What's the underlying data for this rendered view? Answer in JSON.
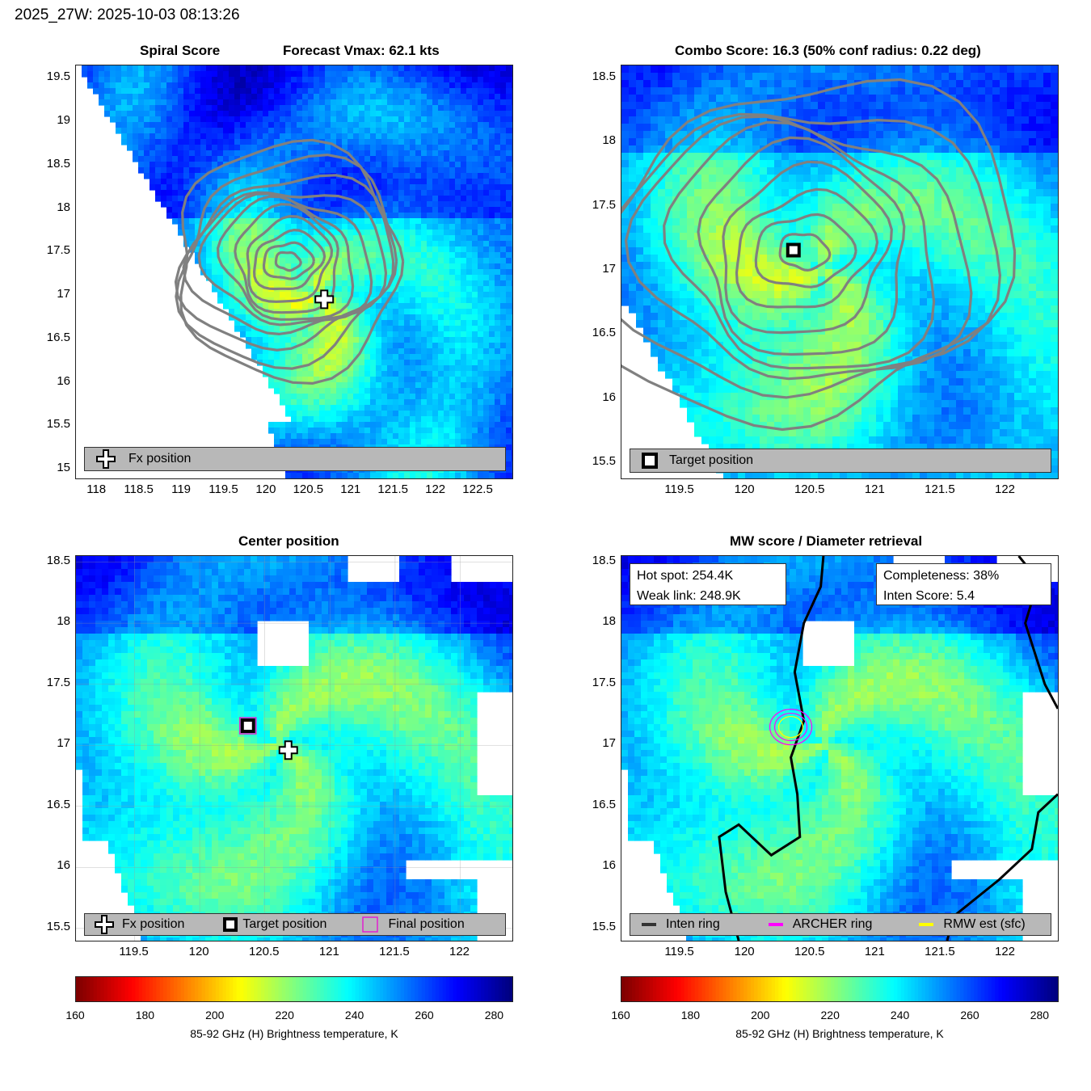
{
  "figure_title": "2025_27W: 2025-10-03 08:13:26",
  "panels": {
    "top_left": {
      "title_left": "Spiral Score",
      "title_right": "Forecast Vmax: 62.1 kts",
      "yticks": [
        "19.5",
        "19",
        "18.5",
        "18",
        "17.5",
        "17",
        "16.5",
        "16",
        "15.5",
        "15"
      ],
      "xticks": [
        "118",
        "118.5",
        "119",
        "119.5",
        "120",
        "120.5",
        "121",
        "121.5",
        "122",
        "122.5"
      ],
      "legend": [
        {
          "marker": "plus-icon",
          "label": "Fx position"
        }
      ]
    },
    "top_right": {
      "title": "Combo Score: 16.3  (50% conf radius: 0.22 deg)",
      "yticks": [
        "18.5",
        "18",
        "17.5",
        "17",
        "16.5",
        "16",
        "15.5"
      ],
      "xticks": [
        "119.5",
        "120",
        "120.5",
        "121",
        "121.5",
        "122"
      ],
      "legend": [
        {
          "marker": "square-icon",
          "label": "Target position"
        }
      ]
    },
    "bottom_left": {
      "title": "Center position",
      "yticks": [
        "18.5",
        "18",
        "17.5",
        "17",
        "16.5",
        "16",
        "15.5"
      ],
      "xticks": [
        "119.5",
        "120",
        "120.5",
        "121",
        "121.5",
        "122"
      ],
      "legend": [
        {
          "marker": "plus-icon",
          "label": "Fx position"
        },
        {
          "marker": "square-icon",
          "label": "Target position"
        },
        {
          "marker": "magenta-square-icon",
          "label": "Final position"
        }
      ]
    },
    "bottom_right": {
      "title": "MW score / Diameter retrieval",
      "yticks": [
        "18.5",
        "18",
        "17.5",
        "17",
        "16.5",
        "16",
        "15.5"
      ],
      "xticks": [
        "119.5",
        "120",
        "120.5",
        "121",
        "121.5",
        "122"
      ],
      "info_left": [
        "Hot spot: 254.4K",
        "Weak link: 248.9K"
      ],
      "info_right": [
        "Completeness: 38%",
        "Inten Score: 5.4"
      ],
      "legend": [
        {
          "marker": "dark-line-icon",
          "label": "Inten ring",
          "color": "#333333"
        },
        {
          "marker": "magenta-line-icon",
          "label": "ARCHER ring",
          "color": "#ff00ff"
        },
        {
          "marker": "yellow-line-icon",
          "label": "RMW est (sfc)",
          "color": "#ffff00"
        }
      ]
    }
  },
  "colorbar": {
    "label": "85-92 GHz (H) Brightness temperature, K",
    "ticks": [
      "160",
      "180",
      "200",
      "220",
      "240",
      "260",
      "280"
    ],
    "colormap": "jet_reversed",
    "range": [
      160,
      285
    ]
  },
  "chart_data": [
    {
      "type": "heatmap",
      "title": "Spiral Score  Forecast Vmax: 62.1 kts",
      "xlim": [
        117.75,
        122.9
      ],
      "ylim": [
        14.9,
        19.65
      ],
      "markers": [
        {
          "name": "Fx position",
          "x": 120.68,
          "y": 16.96
        }
      ],
      "contours": true
    },
    {
      "type": "heatmap",
      "title": "Combo Score: 16.3  (50% conf radius: 0.22 deg)",
      "xlim": [
        119.05,
        122.4
      ],
      "ylim": [
        15.4,
        18.6
      ],
      "markers": [
        {
          "name": "Target position",
          "x": 120.37,
          "y": 17.16
        }
      ],
      "contours": true
    },
    {
      "type": "heatmap",
      "title": "Center position",
      "xlim": [
        119.05,
        122.4
      ],
      "ylim": [
        15.4,
        18.55
      ],
      "markers": [
        {
          "name": "Fx position",
          "x": 120.68,
          "y": 16.96
        },
        {
          "name": "Target position",
          "x": 120.37,
          "y": 17.16
        },
        {
          "name": "Final position",
          "x": 120.37,
          "y": 17.16
        }
      ]
    },
    {
      "type": "heatmap",
      "title": "MW score / Diameter retrieval",
      "xlim": [
        119.05,
        122.4
      ],
      "ylim": [
        15.4,
        18.55
      ],
      "hot_spot_K": 254.4,
      "weak_link_K": 248.9,
      "completeness_pct": 38,
      "inten_score": 5.4
    }
  ]
}
